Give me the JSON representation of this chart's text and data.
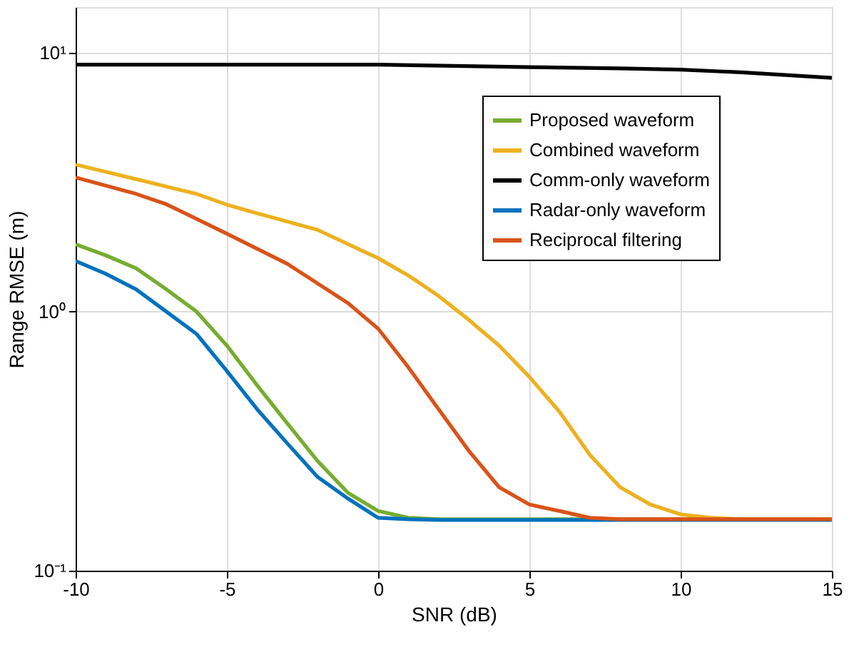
{
  "chart_data": {
    "type": "line",
    "xlabel": "SNR (dB)",
    "ylabel": "Range RMSE (m)",
    "log": "y",
    "grid": true,
    "legend": "top right",
    "line_style": "solid",
    "marker": "none",
    "xlim": [
      -10,
      15
    ],
    "xticks": [
      -10,
      -5,
      0,
      5,
      10,
      15
    ],
    "ylim": [
      0.1,
      15
    ],
    "yticks": [
      {
        "value": 0.1,
        "label": "10⁻¹"
      },
      {
        "value": 1,
        "label": "10⁰"
      },
      {
        "value": 10,
        "label": "10¹"
      }
    ],
    "series": [
      {
        "name": "Proposed waveform",
        "color": "#77ac30",
        "x": [
          -10,
          -9,
          -8,
          -7,
          -6,
          -5,
          -4,
          -3,
          -2,
          -1,
          0,
          1,
          2,
          3,
          5,
          10,
          15
        ],
        "values": [
          1.82,
          1.65,
          1.47,
          1.22,
          1.0,
          0.74,
          0.52,
          0.37,
          0.265,
          0.2,
          0.17,
          0.16,
          0.158,
          0.158,
          0.158,
          0.158,
          0.158
        ]
      },
      {
        "name": "Combined waveform",
        "color": "#edb120",
        "x": [
          -10,
          -8,
          -6,
          -5,
          -4,
          -2,
          0,
          1,
          2,
          3,
          4,
          5,
          6,
          7,
          8,
          9,
          10,
          11,
          12,
          15
        ],
        "values": [
          3.7,
          3.25,
          2.85,
          2.59,
          2.4,
          2.07,
          1.61,
          1.38,
          1.15,
          0.93,
          0.74,
          0.56,
          0.41,
          0.28,
          0.21,
          0.18,
          0.165,
          0.16,
          0.158,
          0.158
        ]
      },
      {
        "name": "Comm-only waveform",
        "color": "#000000",
        "x": [
          -10,
          -5,
          0,
          5,
          8,
          10,
          12,
          15
        ],
        "values": [
          9.0,
          9.0,
          9.0,
          8.8,
          8.7,
          8.6,
          8.4,
          8.0
        ]
      },
      {
        "name": "Radar-only waveform",
        "color": "#0072bd",
        "x": [
          -10,
          -9,
          -8,
          -7,
          -6,
          -5,
          -4,
          -3,
          -2,
          -1,
          0,
          1,
          2,
          5,
          10,
          15
        ],
        "values": [
          1.57,
          1.4,
          1.22,
          1.0,
          0.82,
          0.59,
          0.42,
          0.31,
          0.23,
          0.19,
          0.16,
          0.158,
          0.157,
          0.157,
          0.157,
          0.157
        ]
      },
      {
        "name": "Reciprocal filtering",
        "color": "#d95319",
        "x": [
          -10,
          -8,
          -7,
          -5,
          -3,
          -1,
          0,
          1,
          2,
          3,
          4,
          5,
          6,
          7,
          8,
          10,
          15
        ],
        "values": [
          3.3,
          2.85,
          2.6,
          2.0,
          1.53,
          1.08,
          0.86,
          0.61,
          0.42,
          0.29,
          0.21,
          0.18,
          0.17,
          0.16,
          0.158,
          0.158,
          0.158
        ]
      }
    ]
  }
}
